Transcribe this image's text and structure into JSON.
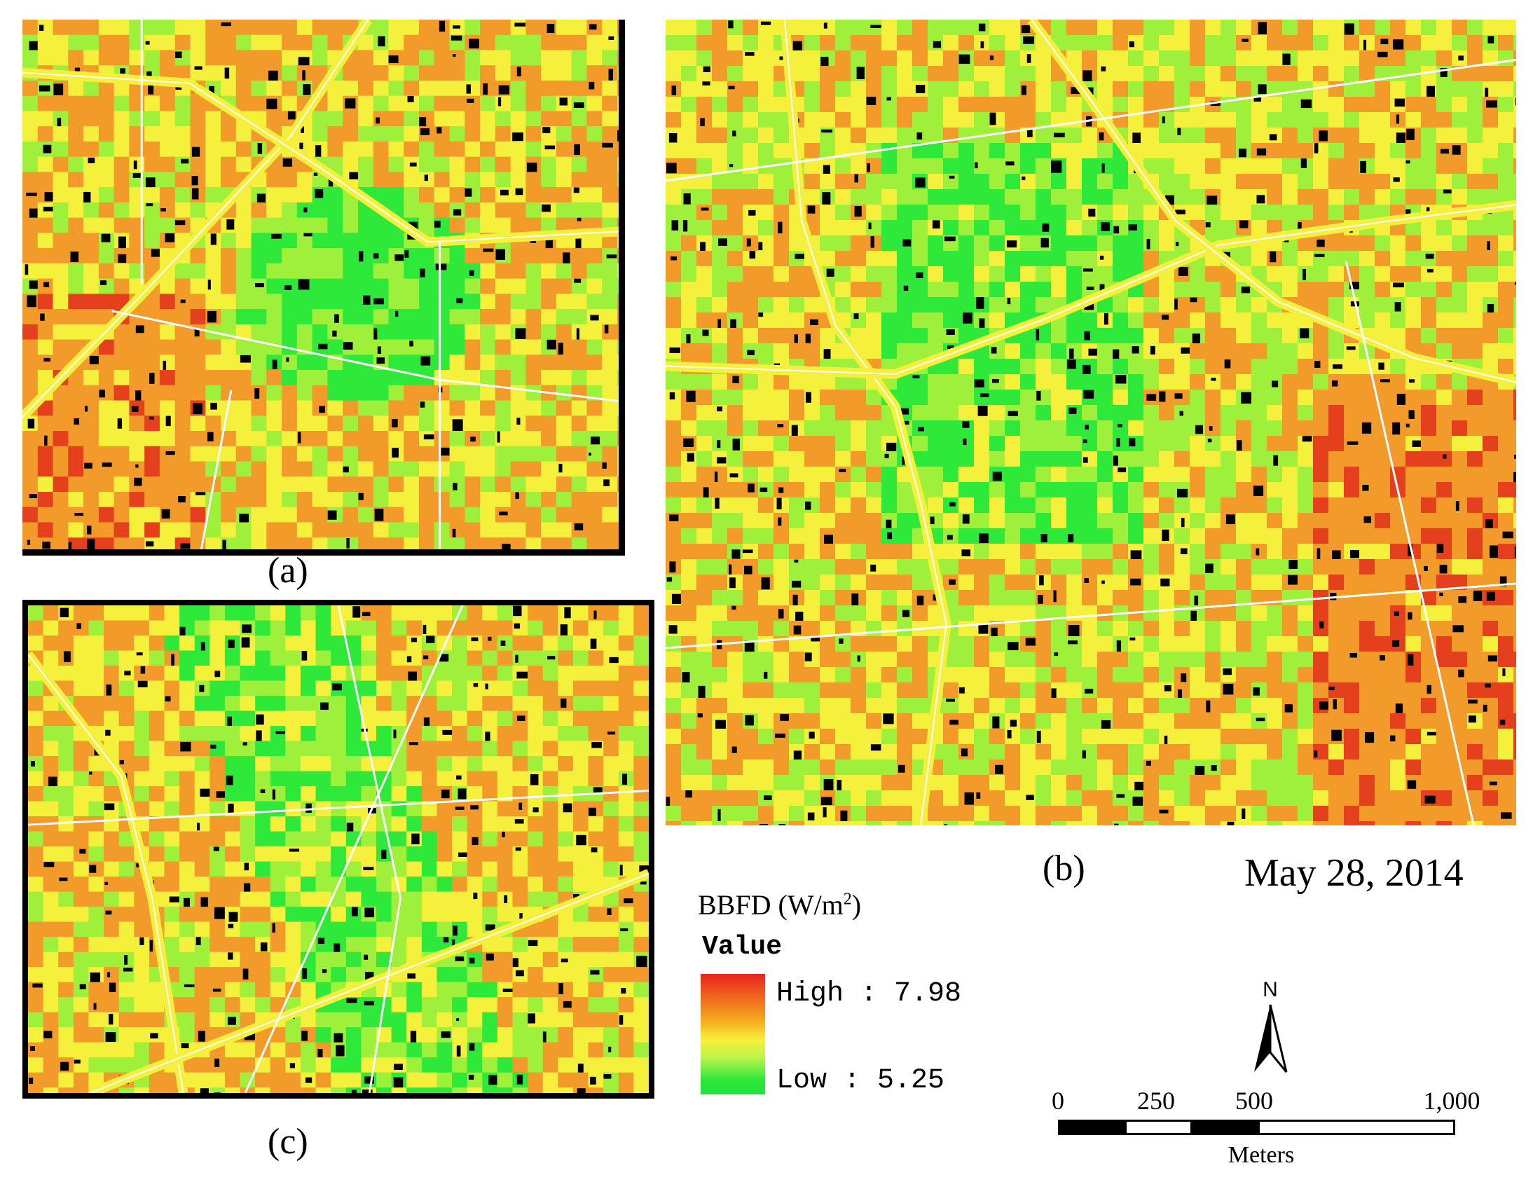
{
  "panels": [
    {
      "caption": "(a)"
    },
    {
      "caption": "(b)"
    },
    {
      "caption": "(c)"
    }
  ],
  "date": "May 28, 2014",
  "legend": {
    "title_main": "BBFD (W/m",
    "title_sup": "2",
    "title_end": ")",
    "value_label": "Value",
    "high": "High : 7.98",
    "low": "Low : 5.25",
    "colors": {
      "high": "#e8241c",
      "mid": "#f6f23a",
      "low": "#1fe33a"
    }
  },
  "north": "N",
  "scalebar": {
    "ticks": [
      "0",
      "250",
      "500",
      "1,000"
    ],
    "unit": "Meters"
  },
  "map_colors": {
    "green": "#2ee83a",
    "lightgreen": "#9ff03a",
    "yellow": "#f4f03c",
    "orange": "#f29a2a",
    "red": "#e5401e",
    "building": "#000000",
    "road": "#ffffff"
  }
}
